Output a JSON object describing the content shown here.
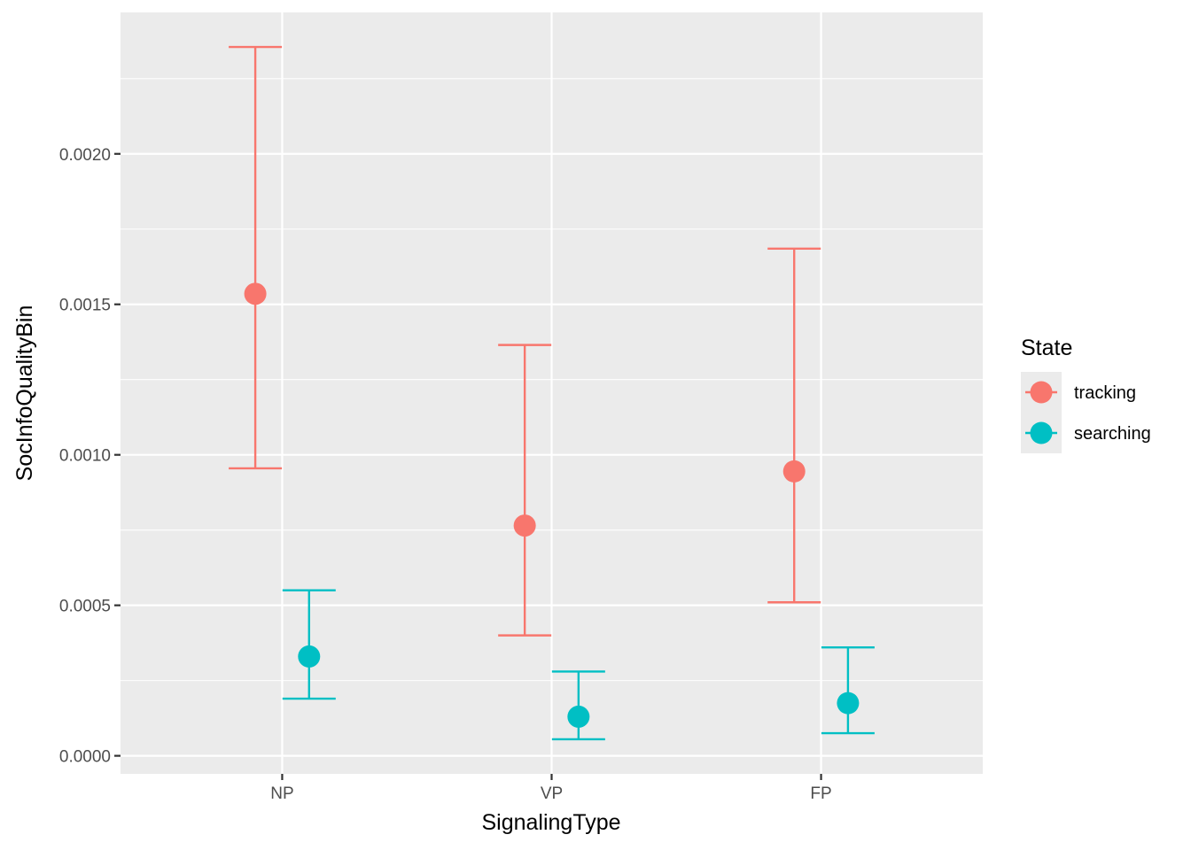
{
  "chart_data": {
    "type": "scatter",
    "subtype": "point-with-errorbars",
    "title": "",
    "xlabel": "SignalingType",
    "ylabel": "SocInfoQualityBin",
    "categories": [
      "NP",
      "VP",
      "FP"
    ],
    "ylim": [
      -6e-05,
      0.00247
    ],
    "yticks": [
      0.0,
      0.0005,
      0.001,
      0.0015,
      0.002
    ],
    "ytick_labels": [
      "0.0000",
      "0.0005",
      "0.0010",
      "0.0015",
      "0.0020"
    ],
    "grid": true,
    "legend": {
      "title": "State",
      "position": "right"
    },
    "series": [
      {
        "name": "tracking",
        "color": "#F8766D",
        "values": [
          0.001535,
          0.000765,
          0.000945
        ],
        "lower": [
          0.000955,
          0.0004,
          0.00051
        ],
        "upper": [
          0.002355,
          0.001365,
          0.001685
        ]
      },
      {
        "name": "searching",
        "color": "#00BFC4",
        "values": [
          0.00033,
          0.00013,
          0.000175
        ],
        "lower": [
          0.00019,
          5.5e-05,
          7.5e-05
        ],
        "upper": [
          0.00055,
          0.00028,
          0.00036
        ]
      }
    ]
  }
}
